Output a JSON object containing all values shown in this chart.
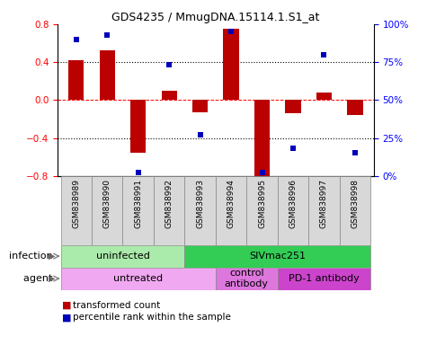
{
  "title": "GDS4235 / MmugDNA.15114.1.S1_at",
  "samples": [
    "GSM838989",
    "GSM838990",
    "GSM838991",
    "GSM838992",
    "GSM838993",
    "GSM838994",
    "GSM838995",
    "GSM838996",
    "GSM838997",
    "GSM838998"
  ],
  "red_values": [
    0.42,
    0.52,
    -0.56,
    0.1,
    -0.13,
    0.75,
    -0.83,
    -0.14,
    0.08,
    -0.16
  ],
  "blue_values": [
    90,
    93,
    2,
    73,
    27,
    95,
    2,
    18,
    80,
    15
  ],
  "ylim_left": [
    -0.8,
    0.8
  ],
  "ylim_right": [
    0,
    100
  ],
  "yticks_left": [
    -0.8,
    -0.4,
    0.0,
    0.4,
    0.8
  ],
  "yticks_right": [
    0,
    25,
    50,
    75,
    100
  ],
  "ytick_labels_right": [
    "0%",
    "25%",
    "50%",
    "75%",
    "100%"
  ],
  "red_color": "#bb0000",
  "blue_color": "#0000bb",
  "dotted_lines": [
    -0.4,
    0.4
  ],
  "infection_groups": [
    {
      "label": "uninfected",
      "start": 0,
      "end": 3,
      "color": "#aaeaaa"
    },
    {
      "label": "SIVmac251",
      "start": 4,
      "end": 9,
      "color": "#33cc55"
    }
  ],
  "agent_groups": [
    {
      "label": "untreated",
      "start": 0,
      "end": 4,
      "color": "#f0a8f0"
    },
    {
      "label": "control\nantibody",
      "start": 5,
      "end": 6,
      "color": "#dd77dd"
    },
    {
      "label": "PD-1 antibody",
      "start": 7,
      "end": 9,
      "color": "#cc44cc"
    }
  ],
  "infection_label": "infection",
  "agent_label": "agent",
  "bar_width": 0.5,
  "label_bg": "#d8d8d8",
  "label_edge": "#888888"
}
